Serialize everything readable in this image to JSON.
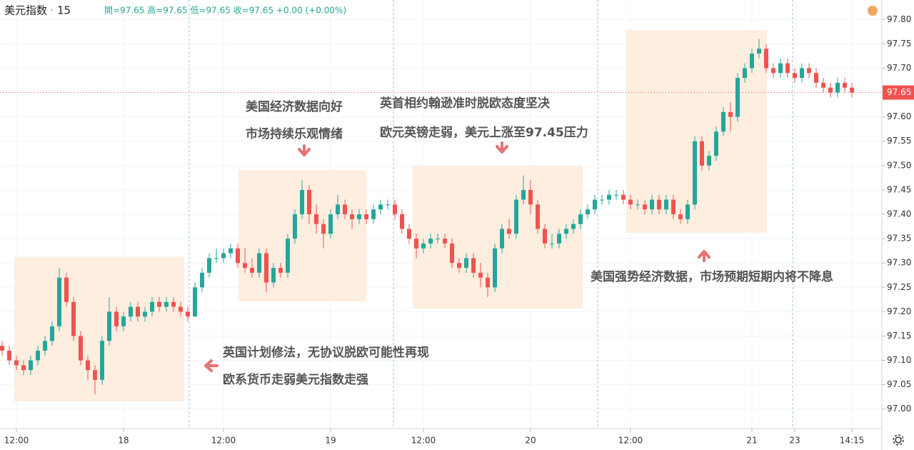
{
  "chart_data": {
    "type": "candlestick",
    "symbol": "美元指数",
    "interval": "15",
    "ohlc_text": "開=97.65 高=97.65 低=97.65 收=97.65 +0.00 (+0.00%)",
    "up_color": "#26a69a",
    "down_color": "#ef5350",
    "grid": true,
    "ylim": [
      96.96,
      97.84
    ],
    "yticks": [
      {
        "value": 97.0,
        "label": "97.00"
      },
      {
        "value": 97.05,
        "label": "97.05"
      },
      {
        "value": 97.1,
        "label": "97.10"
      },
      {
        "value": 97.15,
        "label": "97.15"
      },
      {
        "value": 97.2,
        "label": "97.20"
      },
      {
        "value": 97.25,
        "label": "97.25"
      },
      {
        "value": 97.3,
        "label": "97.30"
      },
      {
        "value": 97.35,
        "label": "97.35"
      },
      {
        "value": 97.4,
        "label": "97.40"
      },
      {
        "value": 97.45,
        "label": "97.45"
      },
      {
        "value": 97.5,
        "label": "97.50"
      },
      {
        "value": 97.55,
        "label": "97.55"
      },
      {
        "value": 97.6,
        "label": "97.60"
      },
      {
        "value": 97.7,
        "label": "97.70"
      },
      {
        "value": 97.75,
        "label": "97.75"
      },
      {
        "value": 97.8,
        "label": "97.80"
      }
    ],
    "last_price": 97.65,
    "categories": [
      null,
      null,
      "12:00",
      null,
      null,
      null,
      null,
      null,
      null,
      null,
      null,
      null,
      null,
      null,
      null,
      null,
      null,
      "18",
      null,
      null,
      null,
      null,
      null,
      null,
      null,
      null,
      null,
      null,
      null,
      null,
      null,
      "12:00",
      null,
      null,
      null,
      null,
      null,
      null,
      null,
      null,
      null,
      null,
      null,
      null,
      null,
      null,
      "19",
      null,
      null,
      null,
      null,
      null,
      null,
      null,
      null,
      null,
      null,
      null,
      null,
      "12:00",
      null,
      null,
      null,
      null,
      null,
      null,
      null,
      null,
      null,
      null,
      null,
      null,
      null,
      null,
      "20",
      null,
      null,
      null,
      null,
      null,
      null,
      null,
      null,
      null,
      null,
      null,
      null,
      null,
      "12:00",
      null,
      null,
      null,
      null,
      null,
      null,
      null,
      null,
      null,
      null,
      null,
      null,
      null,
      null,
      null,
      null,
      "21",
      null,
      null,
      null,
      null,
      null,
      "23",
      null,
      null,
      null,
      null,
      null,
      null,
      null,
      "14:15"
    ],
    "values": [
      [
        97.13,
        97.14,
        97.11,
        97.12
      ],
      [
        97.12,
        97.13,
        97.09,
        97.1
      ],
      [
        97.1,
        97.11,
        97.08,
        97.09
      ],
      [
        97.09,
        97.1,
        97.07,
        97.08
      ],
      [
        97.08,
        97.11,
        97.07,
        97.1
      ],
      [
        97.1,
        97.13,
        97.09,
        97.12
      ],
      [
        97.12,
        97.15,
        97.11,
        97.14
      ],
      [
        97.14,
        97.18,
        97.13,
        97.17
      ],
      [
        97.17,
        97.29,
        97.16,
        97.27
      ],
      [
        97.27,
        97.28,
        97.21,
        97.22
      ],
      [
        97.22,
        97.23,
        97.14,
        97.15
      ],
      [
        97.15,
        97.16,
        97.09,
        97.1
      ],
      [
        97.1,
        97.11,
        97.06,
        97.08
      ],
      [
        97.08,
        97.09,
        97.03,
        97.06
      ],
      [
        97.06,
        97.15,
        97.05,
        97.14
      ],
      [
        97.14,
        97.23,
        97.13,
        97.2
      ],
      [
        97.2,
        97.21,
        97.16,
        97.17
      ],
      [
        97.17,
        97.2,
        97.16,
        97.19
      ],
      [
        97.19,
        97.22,
        97.18,
        97.21
      ],
      [
        97.21,
        97.22,
        97.18,
        97.19
      ],
      [
        97.19,
        97.21,
        97.18,
        97.2
      ],
      [
        97.2,
        97.23,
        97.19,
        97.22
      ],
      [
        97.22,
        97.23,
        97.2,
        97.21
      ],
      [
        97.21,
        97.23,
        97.2,
        97.22
      ],
      [
        97.22,
        97.23,
        97.2,
        97.21
      ],
      [
        97.21,
        97.22,
        97.19,
        97.2
      ],
      [
        97.2,
        97.21,
        97.18,
        97.19
      ],
      [
        97.19,
        97.26,
        97.19,
        97.25
      ],
      [
        97.25,
        97.29,
        97.24,
        97.28
      ],
      [
        97.28,
        97.32,
        97.27,
        97.31
      ],
      [
        97.31,
        97.33,
        97.3,
        97.31
      ],
      [
        97.31,
        97.33,
        97.3,
        97.32
      ],
      [
        97.32,
        97.34,
        97.31,
        97.33
      ],
      [
        97.33,
        97.34,
        97.29,
        97.3
      ],
      [
        97.3,
        97.33,
        97.28,
        97.29
      ],
      [
        97.29,
        97.31,
        97.27,
        97.28
      ],
      [
        97.28,
        97.33,
        97.27,
        97.32
      ],
      [
        97.32,
        97.33,
        97.24,
        97.26
      ],
      [
        97.26,
        97.3,
        97.25,
        97.29
      ],
      [
        97.29,
        97.3,
        97.27,
        97.28
      ],
      [
        97.28,
        97.36,
        97.27,
        97.35
      ],
      [
        97.35,
        97.41,
        97.34,
        97.4
      ],
      [
        97.4,
        97.47,
        97.39,
        97.45
      ],
      [
        97.45,
        97.46,
        97.38,
        97.4
      ],
      [
        97.4,
        97.42,
        97.36,
        97.38
      ],
      [
        97.38,
        97.39,
        97.33,
        97.36
      ],
      [
        97.36,
        97.41,
        97.35,
        97.4
      ],
      [
        97.4,
        97.44,
        97.39,
        97.42
      ],
      [
        97.42,
        97.43,
        97.39,
        97.4
      ],
      [
        97.4,
        97.41,
        97.37,
        97.39
      ],
      [
        97.39,
        97.41,
        97.38,
        97.4
      ],
      [
        97.4,
        97.41,
        97.38,
        97.39
      ],
      [
        97.39,
        97.42,
        97.38,
        97.41
      ],
      [
        97.41,
        97.43,
        97.4,
        97.42
      ],
      [
        97.42,
        97.43,
        97.41,
        97.42
      ],
      [
        97.42,
        97.43,
        97.39,
        97.4
      ],
      [
        97.4,
        97.41,
        97.36,
        97.37
      ],
      [
        97.37,
        97.38,
        97.34,
        97.35
      ],
      [
        97.35,
        97.36,
        97.31,
        97.33
      ],
      [
        97.33,
        97.35,
        97.32,
        97.34
      ],
      [
        97.34,
        97.36,
        97.33,
        97.35
      ],
      [
        97.35,
        97.36,
        97.34,
        97.35
      ],
      [
        97.35,
        97.36,
        97.33,
        97.34
      ],
      [
        97.34,
        97.35,
        97.29,
        97.3
      ],
      [
        97.3,
        97.31,
        97.28,
        97.29
      ],
      [
        97.29,
        97.32,
        97.28,
        97.31
      ],
      [
        97.31,
        97.32,
        97.27,
        97.28
      ],
      [
        97.28,
        97.3,
        97.25,
        97.27
      ],
      [
        97.27,
        97.28,
        97.23,
        97.25
      ],
      [
        97.25,
        97.34,
        97.24,
        97.33
      ],
      [
        97.33,
        97.38,
        97.32,
        97.37
      ],
      [
        97.37,
        97.39,
        97.35,
        97.36
      ],
      [
        97.36,
        97.44,
        97.35,
        97.43
      ],
      [
        97.43,
        97.48,
        97.42,
        97.45
      ],
      [
        97.45,
        97.47,
        97.4,
        97.42
      ],
      [
        97.42,
        97.43,
        97.36,
        97.37
      ],
      [
        97.37,
        97.38,
        97.33,
        97.34
      ],
      [
        97.34,
        97.36,
        97.33,
        97.34
      ],
      [
        97.34,
        97.37,
        97.33,
        97.36
      ],
      [
        97.36,
        97.38,
        97.35,
        97.37
      ],
      [
        97.37,
        97.39,
        97.36,
        97.38
      ],
      [
        97.38,
        97.41,
        97.37,
        97.4
      ],
      [
        97.4,
        97.42,
        97.39,
        97.41
      ],
      [
        97.41,
        97.44,
        97.4,
        97.43
      ],
      [
        97.43,
        97.44,
        97.42,
        97.43
      ],
      [
        97.43,
        97.45,
        97.42,
        97.44
      ],
      [
        97.44,
        97.45,
        97.43,
        97.44
      ],
      [
        97.44,
        97.45,
        97.42,
        97.43
      ],
      [
        97.43,
        97.44,
        97.41,
        97.42
      ],
      [
        97.42,
        97.43,
        97.41,
        97.42
      ],
      [
        97.42,
        97.43,
        97.4,
        97.41
      ],
      [
        97.41,
        97.44,
        97.4,
        97.43
      ],
      [
        97.43,
        97.44,
        97.4,
        97.41
      ],
      [
        97.41,
        97.44,
        97.4,
        97.43
      ],
      [
        97.43,
        97.44,
        97.39,
        97.4
      ],
      [
        97.4,
        97.41,
        97.38,
        97.39
      ],
      [
        97.39,
        97.43,
        97.38,
        97.42
      ],
      [
        97.42,
        97.56,
        97.41,
        97.55
      ],
      [
        97.55,
        97.56,
        97.49,
        97.5
      ],
      [
        97.5,
        97.53,
        97.49,
        97.52
      ],
      [
        97.52,
        97.58,
        97.51,
        97.57
      ],
      [
        97.57,
        97.62,
        97.56,
        97.61
      ],
      [
        97.61,
        97.63,
        97.57,
        97.6
      ],
      [
        97.6,
        97.69,
        97.59,
        97.68
      ],
      [
        97.68,
        97.71,
        97.67,
        97.7
      ],
      [
        97.7,
        97.74,
        97.69,
        97.73
      ],
      [
        97.73,
        97.76,
        97.72,
        97.74
      ],
      [
        97.74,
        97.75,
        97.69,
        97.7
      ],
      [
        97.7,
        97.71,
        97.68,
        97.69
      ],
      [
        97.69,
        97.72,
        97.68,
        97.71
      ],
      [
        97.71,
        97.72,
        97.68,
        97.69
      ],
      [
        97.69,
        97.7,
        97.67,
        97.68
      ],
      [
        97.68,
        97.71,
        97.67,
        97.7
      ],
      [
        97.7,
        97.71,
        97.68,
        97.69
      ],
      [
        97.69,
        97.7,
        97.66,
        97.67
      ],
      [
        97.67,
        97.68,
        97.65,
        97.66
      ],
      [
        97.66,
        97.67,
        97.64,
        97.65
      ],
      [
        97.65,
        97.68,
        97.64,
        97.67
      ],
      [
        97.67,
        97.68,
        97.65,
        97.66
      ],
      [
        97.66,
        97.67,
        97.64,
        97.65
      ]
    ],
    "annotations": [
      {
        "lines": [
          "英国计划修法，无协议脱欧可能性再现",
          "欧系货币走弱美元指数走强"
        ]
      },
      {
        "lines": [
          "美国经济数据向好",
          "市场持续乐观情绪"
        ]
      },
      {
        "lines": [
          "英首相约翰逊准时脱欧态度坚决",
          "欧元英镑走弱，美元上涨至97.45压力"
        ]
      },
      {
        "lines": [
          "美国强势经济数据，市场预期短期内将不降息"
        ]
      }
    ]
  }
}
